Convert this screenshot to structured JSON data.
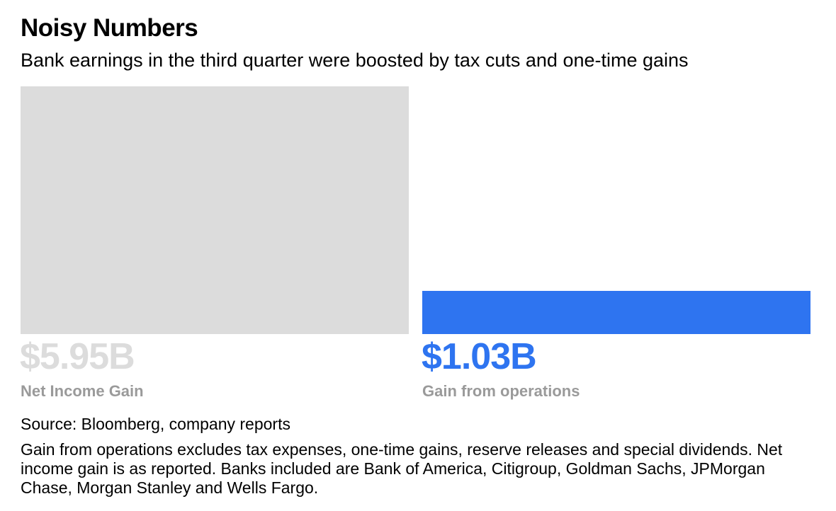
{
  "chart_data": {
    "type": "bar",
    "title": "Noisy Numbers",
    "subtitle": "Bank earnings in the third quarter were boosted by tax cuts and one-time gains",
    "categories": [
      "Net Income Gain",
      "Gain from operations"
    ],
    "values": [
      5.95,
      1.03
    ],
    "value_labels": [
      "$5.95B",
      "$1.03B"
    ],
    "colors": [
      "#dcdcdc",
      "#2e74f0"
    ],
    "label_colors": [
      "#dcdcdc",
      "#2e74f0"
    ],
    "category_label_color": "#9a9a9a",
    "ylim": [
      0,
      5.95
    ],
    "grid": false,
    "xlabel": "",
    "ylabel": ""
  },
  "footer": {
    "source": "Source: Bloomberg, company reports",
    "note": "Gain from operations excludes tax expenses, one-time gains, reserve releases and special dividends. Net income gain is as reported. Banks included are Bank of America, Citigroup, Goldman Sachs, JPMorgan Chase, Morgan Stanley and Wells Fargo."
  }
}
